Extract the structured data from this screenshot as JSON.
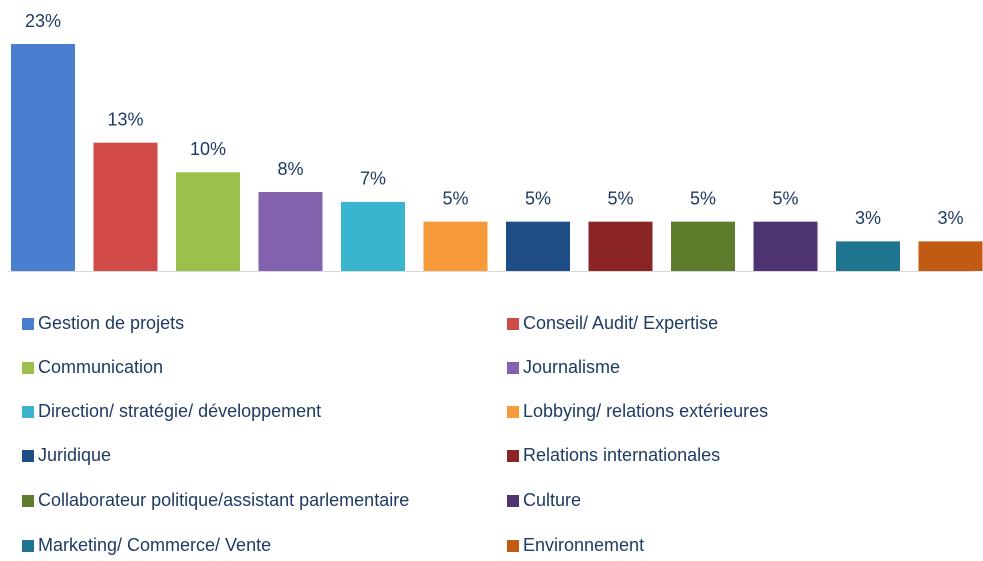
{
  "chart_data": {
    "type": "bar",
    "categories": [
      "Gestion de projets",
      "Conseil/ Audit/ Expertise",
      "Communication",
      "Journalisme",
      "Direction/ stratégie/ développement",
      "Lobbying/ relations extérieures",
      "Juridique",
      "Relations internationales",
      "Collaborateur politique/assistant parlementaire",
      "Culture",
      "Marketing/ Commerce/ Vente",
      "Environnement"
    ],
    "values": [
      23,
      13,
      10,
      8,
      7,
      5,
      5,
      5,
      5,
      5,
      3,
      3
    ],
    "value_labels": [
      "23%",
      "13%",
      "10%",
      "8%",
      "7%",
      "5%",
      "5%",
      "5%",
      "5%",
      "5%",
      "3%",
      "3%"
    ],
    "colors": [
      "#4a7fcf",
      "#d04a47",
      "#9bc04b",
      "#8261ad",
      "#3ab5cf",
      "#f79a3a",
      "#1f4e87",
      "#8b2424",
      "#5e7d2c",
      "#4e3470",
      "#1f7590",
      "#c15a12"
    ],
    "legend": "bottom"
  }
}
